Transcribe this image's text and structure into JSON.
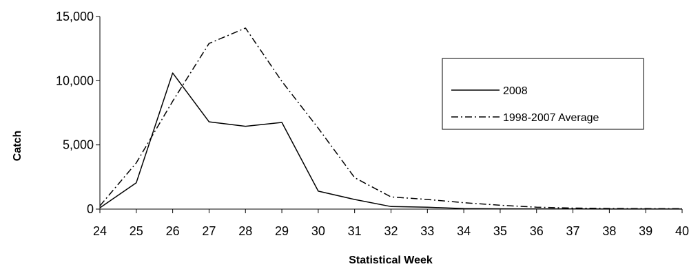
{
  "chart_data": {
    "type": "line",
    "title": "",
    "xlabel": "Statistical Week",
    "ylabel": "Catch",
    "x": [
      24,
      25,
      26,
      27,
      28,
      29,
      30,
      31,
      32,
      33,
      34,
      35,
      36,
      37,
      38,
      39,
      40
    ],
    "x_tick_labels": [
      "24",
      "25",
      "26",
      "27",
      "28",
      "29",
      "30",
      "31",
      "32",
      "33",
      "34",
      "35",
      "36",
      "37",
      "38",
      "39",
      "40"
    ],
    "ylim": [
      0,
      15000
    ],
    "y_ticks": [
      0,
      5000,
      10000,
      15000
    ],
    "y_tick_labels": [
      "0",
      "5,000",
      "10,000",
      "15,000"
    ],
    "grid": false,
    "legend_position": "top-right",
    "series": [
      {
        "name": "2008",
        "line_style": "solid",
        "color": "#000000",
        "values": [
          100,
          2050,
          10600,
          6800,
          6450,
          6750,
          1400,
          750,
          200,
          150,
          40,
          20,
          10,
          10,
          5,
          5,
          5
        ]
      },
      {
        "name": "1998-2007 Average",
        "line_style": "dash-dot",
        "color": "#000000",
        "values": [
          250,
          3600,
          8400,
          12900,
          14100,
          9950,
          6300,
          2450,
          950,
          750,
          500,
          300,
          150,
          80,
          50,
          40,
          30
        ]
      }
    ]
  }
}
